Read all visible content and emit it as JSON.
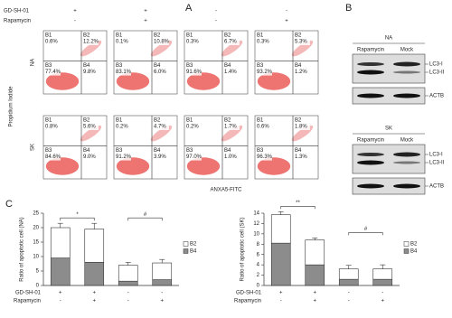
{
  "panel_a": {
    "label": "A",
    "conditions": [
      {
        "name": "GD-SH-01",
        "values": [
          "+",
          "+",
          "-",
          "-"
        ]
      },
      {
        "name": "Rapamycin",
        "values": [
          "-",
          "+",
          "-",
          "+"
        ]
      }
    ],
    "y_label": "Propidium Iodide",
    "x_label": "ANXA5-FITC",
    "rows": [
      {
        "name": "NA",
        "plots": [
          [
            {
              "name": "B1",
              "value": "0.6%"
            },
            {
              "name": "B2",
              "value": "12.2%"
            },
            {
              "name": "B3",
              "value": "77.4%"
            },
            {
              "name": "B4",
              "value": "9.8%"
            }
          ],
          [
            {
              "name": "B1",
              "value": "0.1%"
            },
            {
              "name": "B2",
              "value": "10.8%"
            },
            {
              "name": "B3",
              "value": "83.1%"
            },
            {
              "name": "B4",
              "value": "6.0%"
            }
          ],
          [
            {
              "name": "B1",
              "value": "0.3%"
            },
            {
              "name": "B2",
              "value": "6.7%"
            },
            {
              "name": "B3",
              "value": "91.6%"
            },
            {
              "name": "B4",
              "value": "1.4%"
            }
          ],
          [
            {
              "name": "B1",
              "value": "0.3%"
            },
            {
              "name": "B2",
              "value": "5.3%"
            },
            {
              "name": "B3",
              "value": "93.2%"
            },
            {
              "name": "B4",
              "value": "1.2%"
            }
          ]
        ]
      },
      {
        "name": "SK",
        "plots": [
          [
            {
              "name": "B1",
              "value": "0.8%"
            },
            {
              "name": "B2",
              "value": "5.6%"
            },
            {
              "name": "B3",
              "value": "84.6%"
            },
            {
              "name": "B4",
              "value": "9.0%"
            }
          ],
          [
            {
              "name": "B1",
              "value": "0.2%"
            },
            {
              "name": "B2",
              "value": "4.7%"
            },
            {
              "name": "B3",
              "value": "91.2%"
            },
            {
              "name": "B4",
              "value": "3.9%"
            }
          ],
          [
            {
              "name": "B1",
              "value": "0.2%"
            },
            {
              "name": "B2",
              "value": "1.7%"
            },
            {
              "name": "B3",
              "value": "97.0%"
            },
            {
              "name": "B4",
              "value": "1.0%"
            }
          ],
          [
            {
              "name": "B1",
              "value": "0.6%"
            },
            {
              "name": "B2",
              "value": "1.8%"
            },
            {
              "name": "B3",
              "value": "96.3%"
            },
            {
              "name": "B4",
              "value": "1.3%"
            }
          ]
        ]
      }
    ]
  },
  "panel_b": {
    "label": "B",
    "blots": [
      {
        "name": "NA",
        "lanes": [
          "Rapamycin",
          "Mock"
        ],
        "bands": [
          "LC3-I",
          "LC3-II",
          "ACTB"
        ]
      },
      {
        "name": "SK",
        "lanes": [
          "Rapamycin",
          "Mock"
        ],
        "bands": [
          "LC3-I",
          "LC3-II",
          "ACTB"
        ]
      }
    ]
  },
  "panel_c": {
    "label": "C"
  },
  "chart_data": [
    {
      "type": "bar",
      "y_label": "Ratio of apoptotic cell (NA)",
      "ylim": [
        0,
        25
      ],
      "yticks": [
        0,
        5,
        10,
        15,
        20,
        25
      ],
      "conditions": [
        {
          "name": "GD-SH-01",
          "values": [
            "+",
            "+",
            "-",
            "-"
          ]
        },
        {
          "name": "Rapamycin",
          "values": [
            "-",
            "+",
            "-",
            "+"
          ]
        }
      ],
      "series": [
        {
          "name": "B4",
          "color": "#8c8c8c",
          "values": [
            9.5,
            8,
            1.5,
            2
          ]
        },
        {
          "name": "B2",
          "color": "#ffffff",
          "values": [
            10.5,
            11.5,
            5.5,
            5.8
          ],
          "errors": [
            1.5,
            2,
            1,
            1.2
          ]
        }
      ],
      "annotations": [
        "*",
        "#"
      ]
    },
    {
      "type": "bar",
      "y_label": "Ratio of apoptotic cell (SK)",
      "ylim": [
        0,
        14
      ],
      "yticks": [
        0,
        2,
        4,
        6,
        8,
        10,
        12,
        14
      ],
      "conditions": [
        {
          "name": "GD-SH-01",
          "values": [
            "+",
            "+",
            "-",
            "-"
          ]
        },
        {
          "name": "Rapamycin",
          "values": [
            "-",
            "+",
            "-",
            "+"
          ]
        }
      ],
      "series": [
        {
          "name": "B4",
          "color": "#8c8c8c",
          "values": [
            8.2,
            4,
            1.2,
            1.2
          ]
        },
        {
          "name": "B2",
          "color": "#ffffff",
          "values": [
            5.5,
            4.8,
            2,
            2
          ],
          "errors": [
            0.6,
            0.4,
            0.7,
            0.8
          ]
        }
      ],
      "annotations": [
        "**",
        "#"
      ]
    }
  ]
}
